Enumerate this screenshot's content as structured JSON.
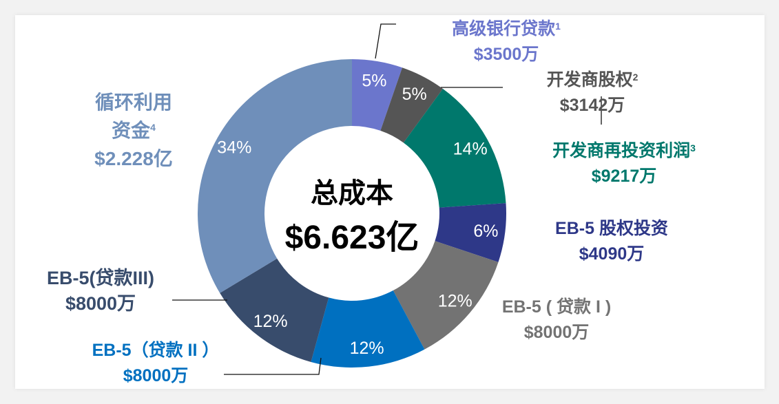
{
  "chart_data": {
    "type": "pie",
    "variant": "donut",
    "center_title": "总成本",
    "center_value": "$6.623亿",
    "unit": "万",
    "start": "top",
    "direction": "clockwise",
    "slices": [
      {
        "name": "高级银行贷款",
        "sup": "1",
        "amount_label": "$3500万",
        "value": 3500,
        "pct_label": "5%",
        "color": "#6b76cc"
      },
      {
        "name": "开发商股权",
        "sup": "2",
        "amount_label": "$3142万",
        "value": 3142,
        "pct_label": "5%",
        "color": "#555555"
      },
      {
        "name": "开发商再投资利润",
        "sup": "3",
        "amount_label": "$9217万",
        "value": 9217,
        "pct_label": "14%",
        "color": "#00786c"
      },
      {
        "name": "EB-5 股权投资",
        "sup": "",
        "amount_label": "$4090万",
        "value": 4090,
        "pct_label": "6%",
        "color": "#2e3888"
      },
      {
        "name": "EB-5 ( 贷款 I )",
        "sup": "",
        "amount_label": "$8000万",
        "value": 8000,
        "pct_label": "12%",
        "color": "#737373"
      },
      {
        "name": "EB-5（贷款 II ）",
        "sup": "",
        "amount_label": "$8000万",
        "value": 8000,
        "pct_label": "12%",
        "color": "#0070c0"
      },
      {
        "name": "EB-5(贷款III)",
        "sup": "",
        "amount_label": "$8000万",
        "value": 8000,
        "pct_label": "12%",
        "color": "#384c6c"
      },
      {
        "name_lines": [
          "循环利用",
          "资金"
        ],
        "sup": "4",
        "amount_label": "$2.228亿",
        "value": 22280,
        "pct_label": "34%",
        "color": "#6f8fba"
      }
    ]
  }
}
